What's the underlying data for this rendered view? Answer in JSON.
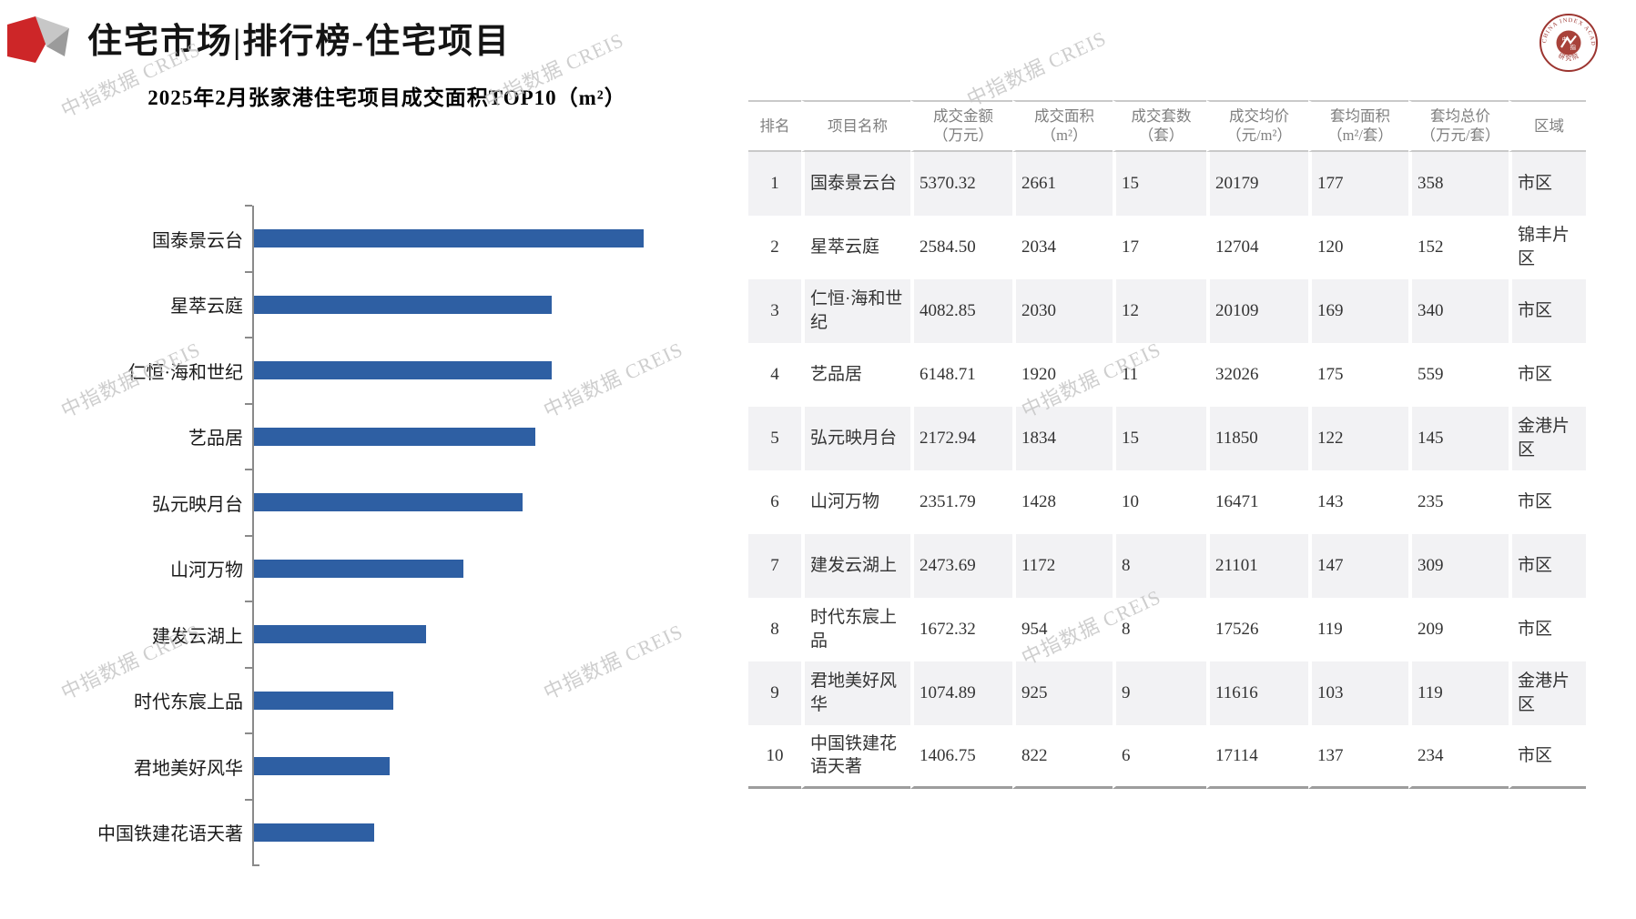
{
  "page": {
    "title": "住宅市场|排行榜-住宅项目",
    "watermark_text": "中指数据 CREIS",
    "org_logo": {
      "arc_text": "CHINA INDEX ACADEMY",
      "center_left_char": "中",
      "center_right_char": "指",
      "bottom_text": "研 究 院"
    }
  },
  "colors": {
    "bar_blue": "#2e5fa3",
    "accent_red": "#cd2628",
    "header_text_gray": "#7f7f7f",
    "row_shade": "#f2f2f4",
    "watermark_gray": "#c3c3c3",
    "axis_gray": "#8a8a8a"
  },
  "chart_data": {
    "type": "bar",
    "orientation": "horizontal",
    "title": "2025年2月张家港住宅项目成交面积TOP10（m²）",
    "value_field": "成交面积（m²）",
    "categories": [
      "国泰景云台",
      "星萃云庭",
      "仁恒·海和世纪",
      "艺品居",
      "弘元映月台",
      "山河万物",
      "建发云湖上",
      "时代东宸上品",
      "君地美好风华",
      "中国铁建花语天著"
    ],
    "values": [
      2661,
      2034,
      2030,
      1920,
      1834,
      1428,
      1172,
      954,
      925,
      822
    ],
    "xlim": [
      0,
      2800
    ],
    "grid": false,
    "axis_tick_labels_shown": false,
    "legend": "none"
  },
  "table": {
    "columns": [
      {
        "key": "rank",
        "label": "排名",
        "unit": ""
      },
      {
        "key": "name",
        "label": "项目名称",
        "unit": ""
      },
      {
        "key": "amount",
        "label": "成交金额",
        "unit": "（万元）"
      },
      {
        "key": "area",
        "label": "成交面积",
        "unit": "（m²）"
      },
      {
        "key": "units",
        "label": "成交套数",
        "unit": "（套）"
      },
      {
        "key": "avg_price",
        "label": "成交均价",
        "unit": "（元/m²）"
      },
      {
        "key": "avg_area",
        "label": "套均面积",
        "unit": "（m²/套）"
      },
      {
        "key": "avg_total",
        "label": "套均总价",
        "unit": "（万元/套）"
      },
      {
        "key": "region",
        "label": "区域",
        "unit": ""
      }
    ],
    "rows": [
      [
        "1",
        "国泰景云台",
        "5370.32",
        "2661",
        "15",
        "20179",
        "177",
        "358",
        "市区"
      ],
      [
        "2",
        "星萃云庭",
        "2584.50",
        "2034",
        "17",
        "12704",
        "120",
        "152",
        "锦丰片区"
      ],
      [
        "3",
        "仁恒·海和世纪",
        "4082.85",
        "2030",
        "12",
        "20109",
        "169",
        "340",
        "市区"
      ],
      [
        "4",
        "艺品居",
        "6148.71",
        "1920",
        "11",
        "32026",
        "175",
        "559",
        "市区"
      ],
      [
        "5",
        "弘元映月台",
        "2172.94",
        "1834",
        "15",
        "11850",
        "122",
        "145",
        "金港片区"
      ],
      [
        "6",
        "山河万物",
        "2351.79",
        "1428",
        "10",
        "16471",
        "143",
        "235",
        "市区"
      ],
      [
        "7",
        "建发云湖上",
        "2473.69",
        "1172",
        "8",
        "21101",
        "147",
        "309",
        "市区"
      ],
      [
        "8",
        "时代东宸上品",
        "1672.32",
        "954",
        "8",
        "17526",
        "119",
        "209",
        "市区"
      ],
      [
        "9",
        "君地美好风华",
        "1074.89",
        "925",
        "9",
        "11616",
        "103",
        "119",
        "金港片区"
      ],
      [
        "10",
        "中国铁建花语天著",
        "1406.75",
        "822",
        "6",
        "17114",
        "137",
        "234",
        "市区"
      ]
    ]
  }
}
